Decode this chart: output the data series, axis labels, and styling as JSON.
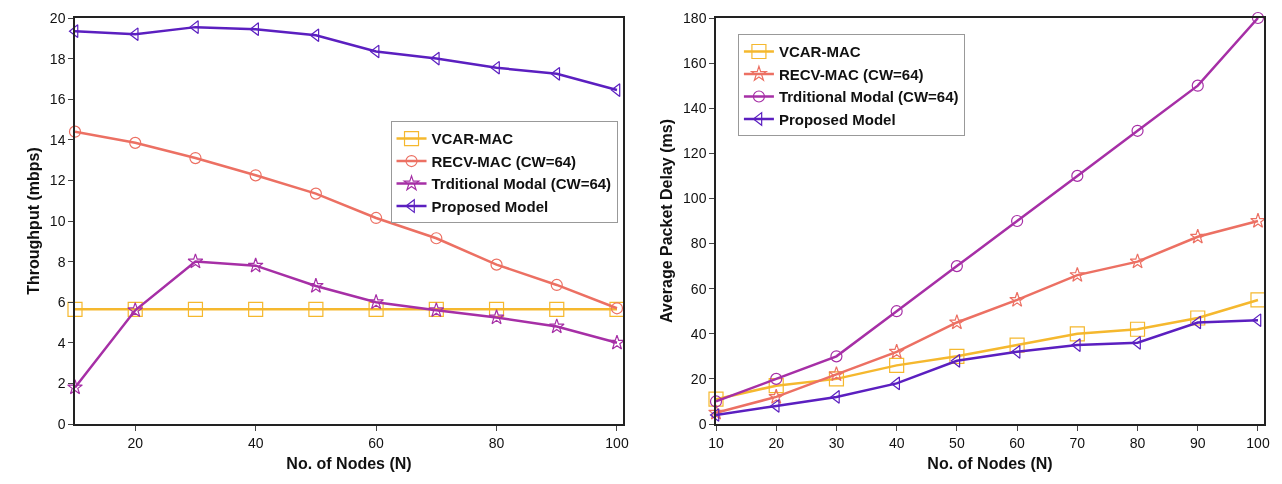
{
  "chart_data": [
    {
      "type": "line",
      "xlabel": "No. of Nodes (N)",
      "ylabel": "Throughput (mbps)",
      "x": [
        10,
        20,
        30,
        40,
        50,
        60,
        70,
        80,
        90,
        100
      ],
      "xlim": [
        10,
        101
      ],
      "xticks": [
        20,
        40,
        60,
        80,
        100
      ],
      "ylim": [
        0,
        20
      ],
      "yticks": [
        0,
        2,
        4,
        6,
        8,
        10,
        12,
        14,
        16,
        18,
        20
      ],
      "grid": false,
      "legend": "right",
      "series": [
        {
          "name": "VCAR-MAC",
          "color": "#f5b82e",
          "marker": "square",
          "values": [
            5.65,
            5.65,
            5.65,
            5.65,
            5.65,
            5.65,
            5.65,
            5.65,
            5.65,
            5.65
          ]
        },
        {
          "name": "RECV-MAC (CW=64)",
          "color": "#ec7063",
          "marker": "circle",
          "values": [
            14.4,
            13.85,
            13.1,
            12.25,
            11.35,
            10.15,
            9.15,
            7.85,
            6.85,
            5.7
          ]
        },
        {
          "name": "Trditional Modal (CW=64)",
          "color": "#a62fa6",
          "marker": "star",
          "values": [
            1.8,
            5.6,
            8.0,
            7.8,
            6.8,
            6.0,
            5.6,
            5.25,
            4.8,
            4.0
          ]
        },
        {
          "name": "Proposed Model",
          "color": "#5b1fc0",
          "marker": "triangle",
          "values": [
            19.35,
            19.2,
            19.55,
            19.45,
            19.15,
            18.35,
            18.0,
            17.55,
            17.25,
            16.45
          ]
        }
      ]
    },
    {
      "type": "line",
      "xlabel": "No. of Nodes (N)",
      "ylabel": "Average Packet Delay (ms)",
      "x": [
        10,
        20,
        30,
        40,
        50,
        60,
        70,
        80,
        90,
        100
      ],
      "xlim": [
        10,
        101
      ],
      "xticks": [
        10,
        20,
        30,
        40,
        50,
        60,
        70,
        80,
        90,
        100
      ],
      "ylim": [
        0,
        180
      ],
      "yticks": [
        0,
        20,
        40,
        60,
        80,
        100,
        120,
        140,
        160,
        180
      ],
      "grid": false,
      "legend": "top left",
      "series": [
        {
          "name": "VCAR-MAC",
          "color": "#f5b82e",
          "marker": "square",
          "values": [
            11,
            17,
            20,
            26,
            30,
            35,
            40,
            42,
            47,
            55
          ]
        },
        {
          "name": "RECV-MAC (CW=64)",
          "color": "#ec7063",
          "marker": "star",
          "values": [
            5,
            12,
            22,
            32,
            45,
            55,
            66,
            72,
            83,
            90
          ]
        },
        {
          "name": "Trditional Modal (CW=64)",
          "color": "#a62fa6",
          "marker": "circle",
          "values": [
            10,
            20,
            30,
            50,
            70,
            90,
            110,
            130,
            150,
            180
          ]
        },
        {
          "name": "Proposed Model",
          "color": "#5b1fc0",
          "marker": "triangle",
          "values": [
            4,
            8,
            12,
            18,
            28,
            32,
            35,
            36,
            45,
            46
          ]
        }
      ]
    }
  ]
}
